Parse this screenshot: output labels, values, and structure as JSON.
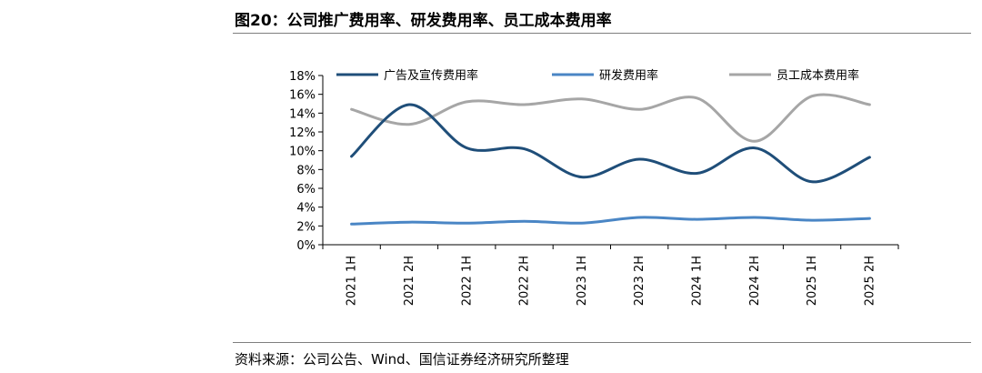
{
  "figure": {
    "title": "图20：公司推广费用率、研发费用率、员工成本费用率",
    "source": "资料来源：公司公告、Wind、国信证券经济研究所整理"
  },
  "chart_data": {
    "type": "line",
    "title": "公司推广费用率、研发费用率、员工成本费用率",
    "xlabel": "",
    "ylabel": "",
    "categories": [
      "2021 1H",
      "2021 2H",
      "2022 1H",
      "2022 2H",
      "2023 1H",
      "2023 2H",
      "2024 1H",
      "2024 2H",
      "2025 1H",
      "2025 2H"
    ],
    "ylim": [
      0,
      18
    ],
    "yticks": [
      "0%",
      "2%",
      "4%",
      "6%",
      "8%",
      "10%",
      "12%",
      "14%",
      "16%",
      "18%"
    ],
    "grid": false,
    "legend_position": "top",
    "series": [
      {
        "name": "广告及宣传费用率",
        "color": "#1f4e79",
        "values": [
          9.4,
          14.9,
          10.3,
          10.2,
          7.2,
          9.1,
          7.6,
          10.3,
          6.7,
          9.3
        ]
      },
      {
        "name": "研发费用率",
        "color": "#4a86c5",
        "values": [
          2.2,
          2.4,
          2.3,
          2.5,
          2.3,
          2.9,
          2.7,
          2.9,
          2.6,
          2.8
        ]
      },
      {
        "name": "员工成本费用率",
        "color": "#a6a6a6",
        "values": [
          14.4,
          12.8,
          15.2,
          14.9,
          15.5,
          14.4,
          15.6,
          11.0,
          15.8,
          14.9
        ]
      }
    ]
  }
}
